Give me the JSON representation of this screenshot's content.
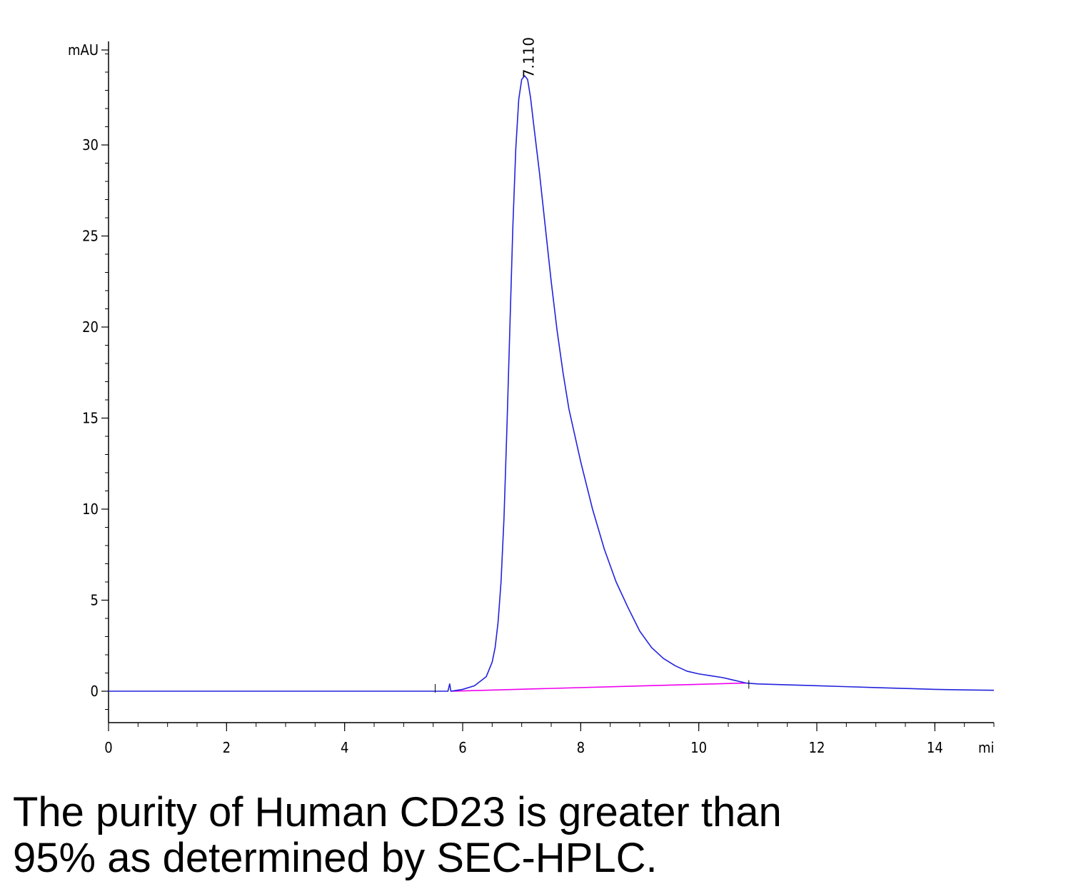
{
  "chart_data": {
    "type": "line",
    "ylabel": "mAU",
    "xlabel": "min",
    "xlim": [
      0,
      15
    ],
    "ylim": [
      -1.7,
      35.5
    ],
    "x_ticks": [
      0,
      2,
      4,
      6,
      8,
      10,
      12,
      14
    ],
    "y_ticks": [
      0,
      5,
      10,
      15,
      20,
      25,
      30
    ],
    "grid": false,
    "legend": "none",
    "peak_annotation": {
      "label": "7.110",
      "x": 7.11,
      "y": 33.6
    },
    "series": [
      {
        "color": "#2222dd",
        "x": [
          0,
          1,
          2,
          3,
          4,
          5,
          5.75,
          5.78,
          5.8,
          6.0,
          6.2,
          6.4,
          6.5,
          6.55,
          6.6,
          6.65,
          6.7,
          6.75,
          6.8,
          6.85,
          6.9,
          6.95,
          7.0,
          7.05,
          7.1,
          7.15,
          7.2,
          7.3,
          7.4,
          7.5,
          7.6,
          7.7,
          7.8,
          8.0,
          8.1,
          8.2,
          8.4,
          8.6,
          8.8,
          9.0,
          9.2,
          9.4,
          9.6,
          9.8,
          10.0,
          10.2,
          10.4,
          10.6,
          10.8,
          11.0,
          11.5,
          12.0,
          12.5,
          13.0,
          13.5,
          14.0,
          14.5,
          15.0
        ],
        "y": [
          0.0,
          0.0,
          0.0,
          0.0,
          0.0,
          0.0,
          0.0,
          0.4,
          0.0,
          0.1,
          0.3,
          0.8,
          1.6,
          2.4,
          3.8,
          6.0,
          9.5,
          14.5,
          20.0,
          25.5,
          29.8,
          32.5,
          33.6,
          33.8,
          33.6,
          32.6,
          31.2,
          28.5,
          25.5,
          22.5,
          19.8,
          17.5,
          15.5,
          12.6,
          11.3,
          10.0,
          7.8,
          6.0,
          4.6,
          3.3,
          2.4,
          1.8,
          1.4,
          1.1,
          0.95,
          0.85,
          0.75,
          0.6,
          0.45,
          0.4,
          0.35,
          0.3,
          0.25,
          0.2,
          0.15,
          0.1,
          0.07,
          0.05
        ]
      },
      {
        "color": "#ee00ee",
        "x": [
          5.8,
          10.8
        ],
        "y": [
          0.0,
          0.45
        ]
      }
    ]
  },
  "caption": {
    "line1": "The purity of Human CD23 is greater than",
    "line2": "95% as determined by SEC-HPLC."
  }
}
